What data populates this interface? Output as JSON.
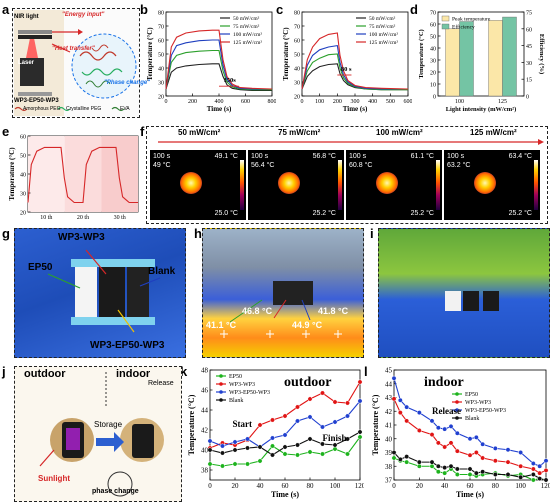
{
  "panel_labels": {
    "a": "a",
    "b": "b",
    "c": "c",
    "d": "d",
    "e": "e",
    "f": "f",
    "g": "g",
    "h": "h",
    "i": "i",
    "j": "j",
    "k": "k",
    "l": "l"
  },
  "panel_a": {
    "nir_label": "NIR light",
    "energy_input": "\"Energy input\"",
    "heat_transfer": "\"Heat transfer\"",
    "phase_change": "\"Phase change\"",
    "laser_label": "Laser",
    "sample_label": "WP3-EP50-WP3",
    "legend": [
      "Amorphous PEG",
      "Crystalline PEG",
      "EVA"
    ],
    "colors": {
      "amorphous": "#c0392b",
      "crystalline": "#27ae60",
      "eva": "#2e7d32"
    }
  },
  "temp_axis_label": "Temperature (°C)",
  "time_axis_label": "Time (s)",
  "panel_f": {
    "headers": [
      "50 mW/cm²",
      "75 mW/cm²",
      "100 mW/cm²",
      "125 mW/cm²"
    ],
    "tiles": [
      {
        "time": "100 s",
        "center": "49 °C",
        "max": "49.1 °C",
        "min": "25.0 °C"
      },
      {
        "time": "100 s",
        "center": "56.4 °C",
        "max": "56.8 °C",
        "min": "25.2 °C"
      },
      {
        "time": "100 s",
        "center": "60.8 °C",
        "max": "61.1 °C",
        "min": "25.2 °C"
      },
      {
        "time": "100 s",
        "center": "63.2 °C",
        "max": "63.4 °C",
        "min": "25.2 °C"
      }
    ]
  },
  "panel_g": {
    "labels": [
      "WP3-WP3",
      "EP50",
      "Blank",
      "WP3-EP50-WP3"
    ]
  },
  "panel_h": {
    "readouts": [
      "41.1 °C",
      "46.8 °C",
      "44.9 °C",
      "41.8 °C"
    ]
  },
  "panel_j": {
    "outdoor": "outdoor",
    "indoor": "indoor",
    "storage": "Storage",
    "release": "Release",
    "sunlight": "Sunlight",
    "phase_change": "phase change"
  },
  "chart_data": [
    {
      "id": "b",
      "type": "line",
      "xlabel": "Time (s)",
      "ylabel": "Temperature (°C)",
      "xlim": [
        0,
        800
      ],
      "ylim": [
        20,
        80
      ],
      "xticks": [
        0,
        200,
        400,
        600,
        800
      ],
      "yticks": [
        20,
        30,
        40,
        50,
        60,
        70,
        80
      ],
      "annotation": "150s",
      "series": [
        {
          "name": "50 mW/cm²",
          "color": "#222222",
          "x": [
            0,
            40,
            80,
            150,
            250,
            350,
            400,
            430,
            460,
            500,
            560,
            650,
            800
          ],
          "y": [
            25,
            37,
            40,
            41.5,
            42.5,
            43,
            43,
            34,
            28,
            25.5,
            24.5,
            24,
            24
          ]
        },
        {
          "name": "75 mW/cm²",
          "color": "#2ca02c",
          "x": [
            0,
            40,
            80,
            150,
            250,
            350,
            400,
            430,
            460,
            500,
            560,
            650,
            800
          ],
          "y": [
            25,
            44,
            49,
            51,
            52,
            52.5,
            52.5,
            38,
            30,
            26.5,
            25,
            24.5,
            24.5
          ]
        },
        {
          "name": "100 mW/cm²",
          "color": "#1f3fbf",
          "x": [
            0,
            40,
            80,
            150,
            250,
            350,
            400,
            430,
            460,
            500,
            560,
            650,
            800
          ],
          "y": [
            25,
            49,
            56,
            58,
            59.5,
            60,
            60,
            42,
            32,
            27.5,
            25.5,
            25,
            25
          ]
        },
        {
          "name": "125 mW/cm²",
          "color": "#d62728",
          "x": [
            0,
            40,
            80,
            150,
            250,
            350,
            400,
            430,
            460,
            500,
            560,
            650,
            800
          ],
          "y": [
            25,
            55,
            62,
            65,
            66.5,
            67,
            67,
            46,
            34,
            28.5,
            26,
            25.5,
            25
          ]
        }
      ]
    },
    {
      "id": "c",
      "type": "line",
      "xlabel": "Time (s)",
      "ylabel": "Temperature (°C)",
      "xlim": [
        0,
        600
      ],
      "ylim": [
        20,
        80
      ],
      "xticks": [
        0,
        100,
        200,
        300,
        400,
        500,
        600
      ],
      "yticks": [
        20,
        30,
        40,
        50,
        60,
        70,
        80
      ],
      "annotation": "80 s",
      "series": [
        {
          "name": "50 mW/cm²",
          "color": "#222222",
          "x": [
            0,
            30,
            60,
            100,
            150,
            200,
            215,
            235,
            260,
            300,
            360,
            450,
            600
          ],
          "y": [
            25,
            34,
            38,
            41,
            42.5,
            43,
            36,
            31,
            28,
            26,
            25,
            24.5,
            24.5
          ]
        },
        {
          "name": "75 mW/cm²",
          "color": "#2ca02c",
          "x": [
            0,
            30,
            60,
            100,
            150,
            200,
            215,
            235,
            260,
            300,
            360,
            450,
            600
          ],
          "y": [
            25,
            38,
            44,
            47,
            49.5,
            50,
            40,
            33,
            29,
            26.5,
            25,
            24.5,
            24.5
          ]
        },
        {
          "name": "100 mW/cm²",
          "color": "#1f3fbf",
          "x": [
            0,
            30,
            60,
            100,
            150,
            200,
            215,
            235,
            260,
            300,
            360,
            450,
            600
          ],
          "y": [
            25,
            42,
            49,
            53,
            55,
            56,
            44,
            35,
            30,
            27,
            25.5,
            25,
            25
          ]
        },
        {
          "name": "125 mW/cm²",
          "color": "#d62728",
          "x": [
            0,
            30,
            60,
            100,
            150,
            200,
            215,
            235,
            260,
            300,
            360,
            450,
            600
          ],
          "y": [
            25,
            46,
            55,
            61,
            64,
            65,
            49,
            38,
            31,
            27.5,
            26,
            25.5,
            25
          ]
        }
      ]
    },
    {
      "id": "d",
      "type": "bar",
      "categories": [
        "100",
        "125"
      ],
      "xlabel": "Light intensity (mW/cm²)",
      "ylabel": "Temperature (°C)",
      "y2label": "Efficiency (%)",
      "ylim": [
        0,
        70
      ],
      "y2lim": [
        0,
        75
      ],
      "yticks": [
        0,
        10,
        20,
        30,
        40,
        50,
        60,
        70
      ],
      "y2ticks": [
        0,
        15,
        30,
        45,
        60,
        75
      ],
      "series": [
        {
          "name": "Peak temperature",
          "axis": "left",
          "color": "#fbe7a8",
          "values": [
            56,
            63
          ]
        },
        {
          "name": "Efficiency",
          "axis": "right",
          "color": "#74c4a4",
          "values": [
            66.5,
            70.5
          ]
        }
      ]
    },
    {
      "id": "e",
      "type": "line",
      "ylabel": "Temperature (°C)",
      "ylim": [
        20,
        60
      ],
      "yticks": [
        20,
        30,
        40,
        50,
        60
      ],
      "xticklabels": [
        "10 th",
        "20 th",
        "30 th"
      ],
      "series": [
        {
          "name": "cycling",
          "color": "#d62728",
          "x": [
            0,
            0.03,
            0.08,
            0.15,
            0.3,
            0.33,
            0.36,
            0.42,
            0.5,
            0.53,
            0.58,
            0.65,
            0.8,
            0.83,
            0.86,
            0.92,
            1.0
          ],
          "y": [
            25,
            45,
            52,
            54,
            54,
            38,
            28,
            25,
            25,
            45,
            52,
            54,
            54,
            38,
            28,
            25,
            25
          ]
        }
      ]
    },
    {
      "id": "k",
      "type": "line",
      "title": "outdoor",
      "xlabel": "Time (s)",
      "ylabel": "Temperature (°C)",
      "xlim": [
        0,
        120
      ],
      "ylim": [
        37,
        48
      ],
      "xticks": [
        0,
        20,
        40,
        60,
        80,
        100,
        120
      ],
      "yticks": [
        38,
        40,
        42,
        44,
        46,
        48
      ],
      "annotations": [
        "Start",
        "Finish"
      ],
      "series": [
        {
          "name": "EP50",
          "color": "#1db31d",
          "x": [
            0,
            10,
            20,
            30,
            40,
            50,
            60,
            70,
            80,
            90,
            100,
            110,
            120
          ],
          "y": [
            38.6,
            38.4,
            38.6,
            38.6,
            38.9,
            40.4,
            39.6,
            39.5,
            39.8,
            39.6,
            40.1,
            39.6,
            41.3
          ]
        },
        {
          "name": "WP3-WP3",
          "color": "#e11414",
          "x": [
            0,
            10,
            20,
            30,
            40,
            50,
            60,
            70,
            80,
            90,
            100,
            110,
            120
          ],
          "y": [
            40.2,
            40.7,
            40.5,
            41.0,
            42.5,
            43.0,
            43.4,
            44.3,
            45.1,
            45.7,
            44.8,
            44.7,
            46.8
          ]
        },
        {
          "name": "WP3-EP50-WP3",
          "color": "#2040d0",
          "x": [
            0,
            10,
            20,
            30,
            40,
            50,
            60,
            70,
            80,
            90,
            100,
            110,
            120
          ],
          "y": [
            40.9,
            40.4,
            40.8,
            41.1,
            40.3,
            41.2,
            41.5,
            42.9,
            43.3,
            42.3,
            42.8,
            43.4,
            44.9
          ]
        },
        {
          "name": "Blank",
          "color": "#111111",
          "x": [
            0,
            10,
            20,
            30,
            40,
            50,
            60,
            70,
            80,
            90,
            100,
            110,
            120
          ],
          "y": [
            40.0,
            39.7,
            40.0,
            40.2,
            40.3,
            39.5,
            40.3,
            40.5,
            41.1,
            40.6,
            40.5,
            41.1,
            41.8
          ]
        }
      ]
    },
    {
      "id": "l",
      "type": "line",
      "title": "indoor",
      "xlabel": "Time (s)",
      "ylabel": "Temperature (°C)",
      "xlim": [
        0,
        120
      ],
      "ylim": [
        37,
        45
      ],
      "xticks": [
        0,
        20,
        40,
        60,
        80,
        100,
        120
      ],
      "yticks": [
        37,
        38,
        39,
        40,
        41,
        42,
        43,
        44,
        45
      ],
      "annotation": "Release",
      "series": [
        {
          "name": "EP50",
          "color": "#1db31d",
          "x": [
            0,
            5,
            10,
            20,
            30,
            35,
            40,
            45,
            50,
            60,
            65,
            70,
            80,
            90,
            100,
            110,
            115,
            120
          ],
          "y": [
            38.6,
            38.4,
            38.3,
            38.0,
            38.0,
            37.6,
            37.5,
            37.8,
            37.4,
            37.4,
            37.3,
            37.4,
            37.5,
            37.3,
            37.4,
            37.0,
            37.1,
            37.0
          ]
        },
        {
          "name": "WP3-WP3",
          "color": "#e11414",
          "x": [
            0,
            5,
            10,
            20,
            30,
            35,
            40,
            45,
            50,
            60,
            65,
            70,
            80,
            90,
            100,
            110,
            115,
            120
          ],
          "y": [
            42.9,
            41.9,
            41.3,
            40.6,
            40.3,
            39.7,
            39.4,
            39.7,
            39.1,
            38.8,
            39.0,
            38.6,
            38.4,
            38.3,
            38.0,
            37.8,
            37.5,
            37.7
          ]
        },
        {
          "name": "WP3-EP50-WP3",
          "color": "#2040d0",
          "x": [
            0,
            5,
            10,
            20,
            30,
            35,
            40,
            45,
            50,
            60,
            65,
            70,
            80,
            90,
            100,
            110,
            115,
            120
          ],
          "y": [
            44.4,
            42.8,
            42.3,
            41.9,
            41.3,
            40.8,
            40.7,
            40.9,
            40.4,
            40.0,
            40.1,
            39.6,
            39.3,
            39.2,
            39.0,
            38.2,
            38.0,
            38.4
          ]
        },
        {
          "name": "Blank",
          "color": "#111111",
          "x": [
            0,
            5,
            10,
            20,
            30,
            35,
            40,
            45,
            50,
            60,
            65,
            70,
            80,
            90,
            100,
            110,
            115,
            120
          ],
          "y": [
            39.0,
            38.5,
            38.7,
            38.3,
            38.3,
            38.0,
            37.9,
            38.0,
            37.8,
            37.8,
            37.5,
            37.6,
            37.4,
            37.4,
            37.2,
            37.4,
            37.1,
            37.0
          ]
        }
      ]
    }
  ]
}
